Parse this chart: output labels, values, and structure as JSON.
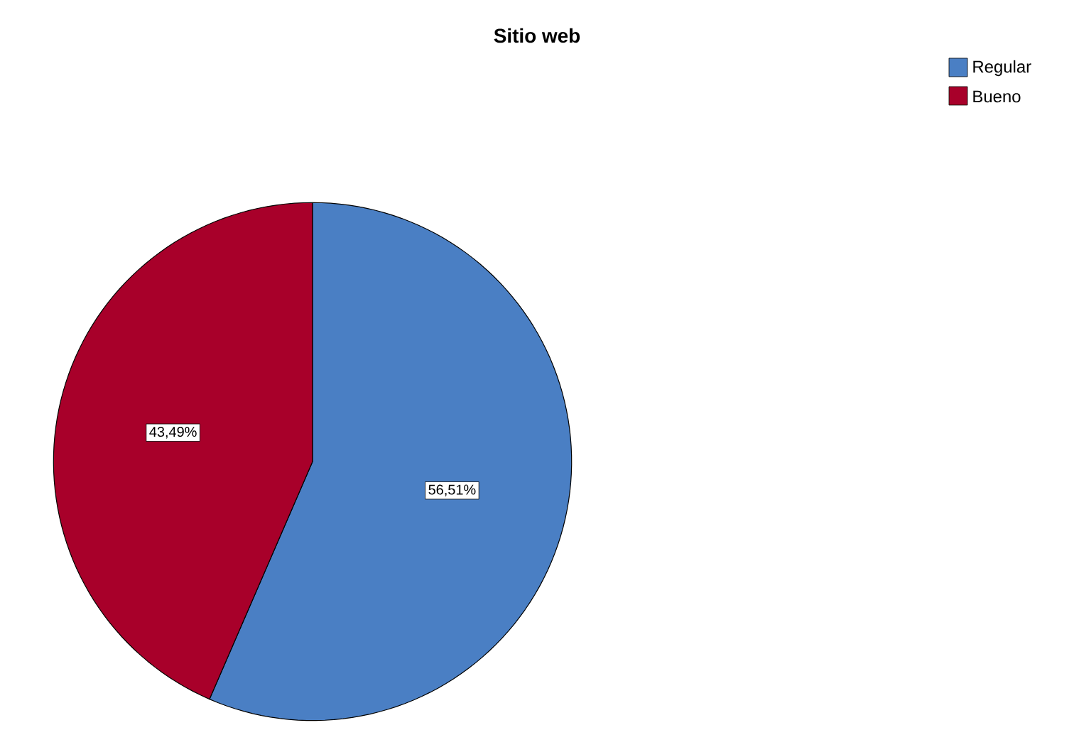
{
  "chart_data": {
    "type": "pie",
    "title": "Sitio web",
    "categories": [
      "Regular",
      "Bueno"
    ],
    "values": [
      56.51,
      43.49
    ],
    "colors": [
      "#4a7fc4",
      "#a8002a"
    ],
    "value_labels": [
      "56,51%",
      "43,49%"
    ],
    "legend": "top right"
  }
}
